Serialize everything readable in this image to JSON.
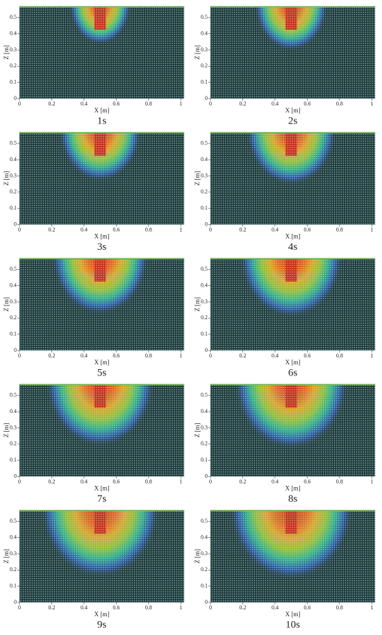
{
  "chart_data": [
    {
      "type": "particle-field",
      "title": "1s",
      "x_label": "X [m]",
      "y_label": "Z [m]",
      "xlim": [
        0,
        1.02
      ],
      "ylim": [
        0,
        0.57
      ],
      "xticks": [
        0,
        0.2,
        0.4,
        0.6,
        0.8,
        1
      ],
      "yticks": [
        0,
        0.1,
        0.2,
        0.3,
        0.4,
        0.5
      ]
    },
    {
      "type": "particle-field",
      "title": "2s",
      "x_label": "X [m]",
      "y_label": "Z [m]",
      "xlim": [
        0,
        1.02
      ],
      "ylim": [
        0,
        0.57
      ],
      "xticks": [
        0,
        0.2,
        0.4,
        0.6,
        0.8,
        1
      ],
      "yticks": [
        0,
        0.1,
        0.2,
        0.3,
        0.4,
        0.5
      ]
    },
    {
      "type": "particle-field",
      "title": "3s",
      "x_label": "X [m]",
      "y_label": "Z [m]",
      "xlim": [
        0,
        1.02
      ],
      "ylim": [
        0,
        0.57
      ],
      "xticks": [
        0,
        0.2,
        0.4,
        0.6,
        0.8,
        1
      ],
      "yticks": [
        0,
        0.1,
        0.2,
        0.3,
        0.4,
        0.5
      ]
    },
    {
      "type": "particle-field",
      "title": "4s",
      "x_label": "X [m]",
      "y_label": "Z [m]",
      "xlim": [
        0,
        1.02
      ],
      "ylim": [
        0,
        0.57
      ],
      "xticks": [
        0,
        0.2,
        0.4,
        0.6,
        0.8,
        1
      ],
      "yticks": [
        0,
        0.1,
        0.2,
        0.3,
        0.4,
        0.5
      ]
    },
    {
      "type": "particle-field",
      "title": "5s",
      "x_label": "X [m]",
      "y_label": "Z [m]",
      "xlim": [
        0,
        1.02
      ],
      "ylim": [
        0,
        0.57
      ],
      "xticks": [
        0,
        0.2,
        0.4,
        0.6,
        0.8,
        1
      ],
      "yticks": [
        0,
        0.1,
        0.2,
        0.3,
        0.4,
        0.5
      ]
    },
    {
      "type": "particle-field",
      "title": "6s",
      "x_label": "X [m]",
      "y_label": "Z [m]",
      "xlim": [
        0,
        1.02
      ],
      "ylim": [
        0,
        0.57
      ],
      "xticks": [
        0,
        0.2,
        0.4,
        0.6,
        0.8,
        1
      ],
      "yticks": [
        0,
        0.1,
        0.2,
        0.3,
        0.4,
        0.5
      ]
    },
    {
      "type": "particle-field",
      "title": "7s",
      "x_label": "X [m]",
      "y_label": "Z [m]",
      "xlim": [
        0,
        1.02
      ],
      "ylim": [
        0,
        0.57
      ],
      "xticks": [
        0,
        0.2,
        0.4,
        0.6,
        0.8,
        1
      ],
      "yticks": [
        0,
        0.1,
        0.2,
        0.3,
        0.4,
        0.5
      ]
    },
    {
      "type": "particle-field",
      "title": "8s",
      "x_label": "X [m]",
      "y_label": "Z [m]",
      "xlim": [
        0,
        1.02
      ],
      "ylim": [
        0,
        0.57
      ],
      "xticks": [
        0,
        0.2,
        0.4,
        0.6,
        0.8,
        1
      ],
      "yticks": [
        0,
        0.1,
        0.2,
        0.3,
        0.4,
        0.5
      ]
    },
    {
      "type": "particle-field",
      "title": "9s",
      "x_label": "X [m]",
      "y_label": "Z [m]",
      "xlim": [
        0,
        1.02
      ],
      "ylim": [
        0,
        0.57
      ],
      "xticks": [
        0,
        0.2,
        0.4,
        0.6,
        0.8,
        1
      ],
      "yticks": [
        0,
        0.1,
        0.2,
        0.3,
        0.4,
        0.5
      ]
    },
    {
      "type": "particle-field",
      "title": "10s",
      "x_label": "X [m]",
      "y_label": "Z [m]",
      "xlim": [
        0,
        1.02
      ],
      "ylim": [
        0,
        0.57
      ],
      "xticks": [
        0,
        0.2,
        0.4,
        0.6,
        0.8,
        1
      ],
      "yticks": [
        0,
        0.1,
        0.2,
        0.3,
        0.4,
        0.5
      ]
    }
  ]
}
